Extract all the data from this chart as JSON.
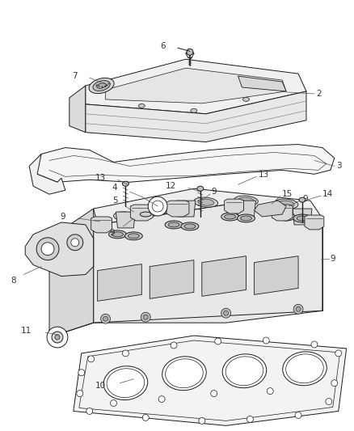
{
  "bg_color": "#ffffff",
  "line_color": "#1a1a1a",
  "fig_width": 4.39,
  "fig_height": 5.33,
  "dpi": 100,
  "label_fs": 7.5,
  "lw": 0.7
}
